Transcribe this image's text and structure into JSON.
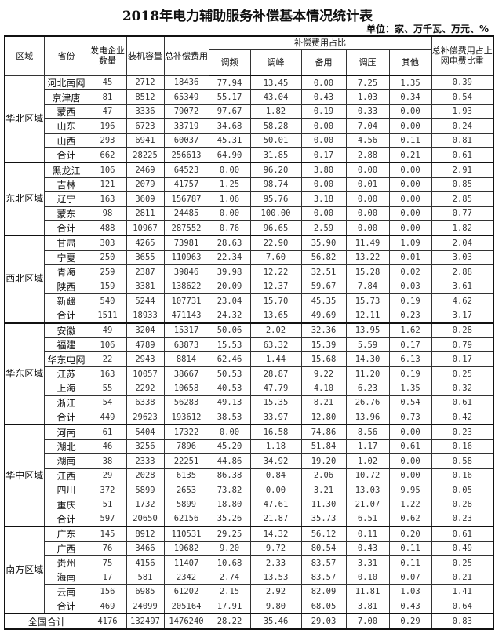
{
  "title": "2018年电力辅助服务补偿基本情况统计表",
  "unit": "单位：家、万千瓦、万元、%",
  "headers": {
    "region": "区域",
    "province": "省份",
    "companies": "发电企业数量",
    "capacity": "装机容量",
    "total_comp": "总补偿费用",
    "share_group": "补偿费用占比",
    "freq": "调频",
    "peak": "调峰",
    "reserve": "备用",
    "voltage": "调压",
    "other": "其他",
    "ratio": "总补偿费用占上网电费比重"
  },
  "regions": [
    {
      "name": "华北区域",
      "rows": [
        [
          "河北南网",
          "45",
          "2712",
          "18436",
          "77.94",
          "13.45",
          "0.00",
          "7.25",
          "1.35",
          "0.39"
        ],
        [
          "京津唐",
          "81",
          "8512",
          "65349",
          "55.17",
          "43.04",
          "0.43",
          "1.03",
          "0.34",
          "0.54"
        ],
        [
          "蒙西",
          "47",
          "3336",
          "79072",
          "97.67",
          "1.82",
          "0.19",
          "0.33",
          "0.00",
          "1.93"
        ],
        [
          "山东",
          "196",
          "6723",
          "33719",
          "34.68",
          "58.28",
          "0.00",
          "7.04",
          "0.00",
          "0.24"
        ],
        [
          "山西",
          "293",
          "6941",
          "60037",
          "45.31",
          "50.01",
          "0.00",
          "4.56",
          "0.11",
          "0.81"
        ],
        [
          "合计",
          "662",
          "28225",
          "256613",
          "64.90",
          "31.85",
          "0.17",
          "2.88",
          "0.21",
          "0.61"
        ]
      ]
    },
    {
      "name": "东北区域",
      "rows": [
        [
          "黑龙江",
          "106",
          "2469",
          "64523",
          "0.00",
          "96.20",
          "3.80",
          "0.00",
          "0.00",
          "2.91"
        ],
        [
          "吉林",
          "121",
          "2079",
          "41757",
          "1.25",
          "98.74",
          "0.00",
          "0.01",
          "0.00",
          "0.85"
        ],
        [
          "辽宁",
          "163",
          "3609",
          "156787",
          "1.06",
          "95.76",
          "3.18",
          "0.00",
          "0.00",
          "2.85"
        ],
        [
          "蒙东",
          "98",
          "2811",
          "24485",
          "0.00",
          "100.00",
          "0.00",
          "0.00",
          "0.00",
          "0.77"
        ],
        [
          "合计",
          "488",
          "10967",
          "287552",
          "0.76",
          "96.65",
          "2.59",
          "0.00",
          "0.00",
          "1.82"
        ]
      ]
    },
    {
      "name": "西北区域",
      "rows": [
        [
          "甘肃",
          "303",
          "4265",
          "73981",
          "28.63",
          "22.90",
          "35.90",
          "11.49",
          "1.09",
          "2.04"
        ],
        [
          "宁夏",
          "250",
          "3655",
          "110963",
          "22.34",
          "7.60",
          "56.82",
          "13.22",
          "0.01",
          "3.03"
        ],
        [
          "青海",
          "259",
          "2387",
          "39846",
          "39.98",
          "12.22",
          "32.51",
          "15.28",
          "0.02",
          "2.88"
        ],
        [
          "陕西",
          "159",
          "3381",
          "138622",
          "20.09",
          "12.37",
          "59.67",
          "7.84",
          "0.03",
          "3.61"
        ],
        [
          "新疆",
          "540",
          "5244",
          "107731",
          "23.04",
          "15.70",
          "45.35",
          "15.73",
          "0.19",
          "4.62"
        ],
        [
          "合计",
          "1511",
          "18933",
          "471143",
          "24.32",
          "13.65",
          "49.69",
          "12.11",
          "0.23",
          "3.17"
        ]
      ]
    },
    {
      "name": "华东区域",
      "rows": [
        [
          "安徽",
          "49",
          "3204",
          "15317",
          "50.06",
          "2.02",
          "32.36",
          "13.95",
          "1.62",
          "0.28"
        ],
        [
          "福建",
          "106",
          "4789",
          "63873",
          "15.53",
          "63.32",
          "15.39",
          "5.59",
          "0.17",
          "0.79"
        ],
        [
          "华东电网",
          "22",
          "2943",
          "8814",
          "62.46",
          "1.44",
          "15.68",
          "14.30",
          "6.13",
          "0.17"
        ],
        [
          "江苏",
          "163",
          "10057",
          "38667",
          "50.53",
          "28.87",
          "9.22",
          "11.20",
          "0.19",
          "0.25"
        ],
        [
          "上海",
          "55",
          "2292",
          "10658",
          "40.53",
          "47.79",
          "4.10",
          "6.23",
          "1.35",
          "0.32"
        ],
        [
          "浙江",
          "54",
          "6338",
          "56283",
          "49.13",
          "15.35",
          "8.21",
          "26.76",
          "0.54",
          "0.61"
        ],
        [
          "合计",
          "449",
          "29623",
          "193612",
          "38.53",
          "33.97",
          "12.80",
          "13.96",
          "0.73",
          "0.42"
        ]
      ]
    },
    {
      "name": "华中区域",
      "rows": [
        [
          "河南",
          "61",
          "5404",
          "17322",
          "0.00",
          "16.58",
          "74.86",
          "8.56",
          "0.00",
          "0.23"
        ],
        [
          "湖北",
          "46",
          "3256",
          "7896",
          "45.20",
          "1.18",
          "51.84",
          "1.17",
          "0.61",
          "0.16"
        ],
        [
          "湖南",
          "38",
          "2333",
          "22251",
          "44.86",
          "34.92",
          "19.20",
          "1.02",
          "0.00",
          "0.58"
        ],
        [
          "江西",
          "29",
          "2028",
          "6135",
          "86.38",
          "0.84",
          "2.06",
          "10.72",
          "0.00",
          "0.16"
        ],
        [
          "四川",
          "372",
          "5899",
          "2653",
          "73.82",
          "0.00",
          "3.21",
          "13.03",
          "9.95",
          "0.05"
        ],
        [
          "重庆",
          "51",
          "1732",
          "5899",
          "18.80",
          "47.61",
          "11.30",
          "21.07",
          "1.22",
          "0.28"
        ],
        [
          "合计",
          "597",
          "20650",
          "62156",
          "35.26",
          "21.87",
          "35.73",
          "6.51",
          "0.62",
          "0.23"
        ]
      ]
    },
    {
      "name": "南方区域",
      "rows": [
        [
          "广东",
          "145",
          "8912",
          "110531",
          "29.25",
          "14.32",
          "56.12",
          "0.11",
          "0.20",
          "0.61"
        ],
        [
          "广西",
          "76",
          "3466",
          "19682",
          "9.20",
          "9.72",
          "80.54",
          "0.43",
          "0.11",
          "0.49"
        ],
        [
          "贵州",
          "75",
          "4156",
          "11407",
          "10.68",
          "2.33",
          "83.57",
          "3.31",
          "0.11",
          "0.25"
        ],
        [
          "海南",
          "17",
          "581",
          "2342",
          "2.74",
          "13.53",
          "83.57",
          "0.10",
          "0.07",
          "0.21"
        ],
        [
          "云南",
          "156",
          "6985",
          "61202",
          "2.15",
          "2.92",
          "82.09",
          "11.81",
          "1.03",
          "1.41"
        ],
        [
          "合计",
          "469",
          "24099",
          "205164",
          "17.91",
          "9.80",
          "68.05",
          "3.81",
          "0.43",
          "0.64"
        ]
      ]
    }
  ],
  "national": [
    "全国合计",
    "4176",
    "132497",
    "1476240",
    "28.22",
    "35.46",
    "29.03",
    "7.00",
    "0.29",
    "0.83"
  ]
}
